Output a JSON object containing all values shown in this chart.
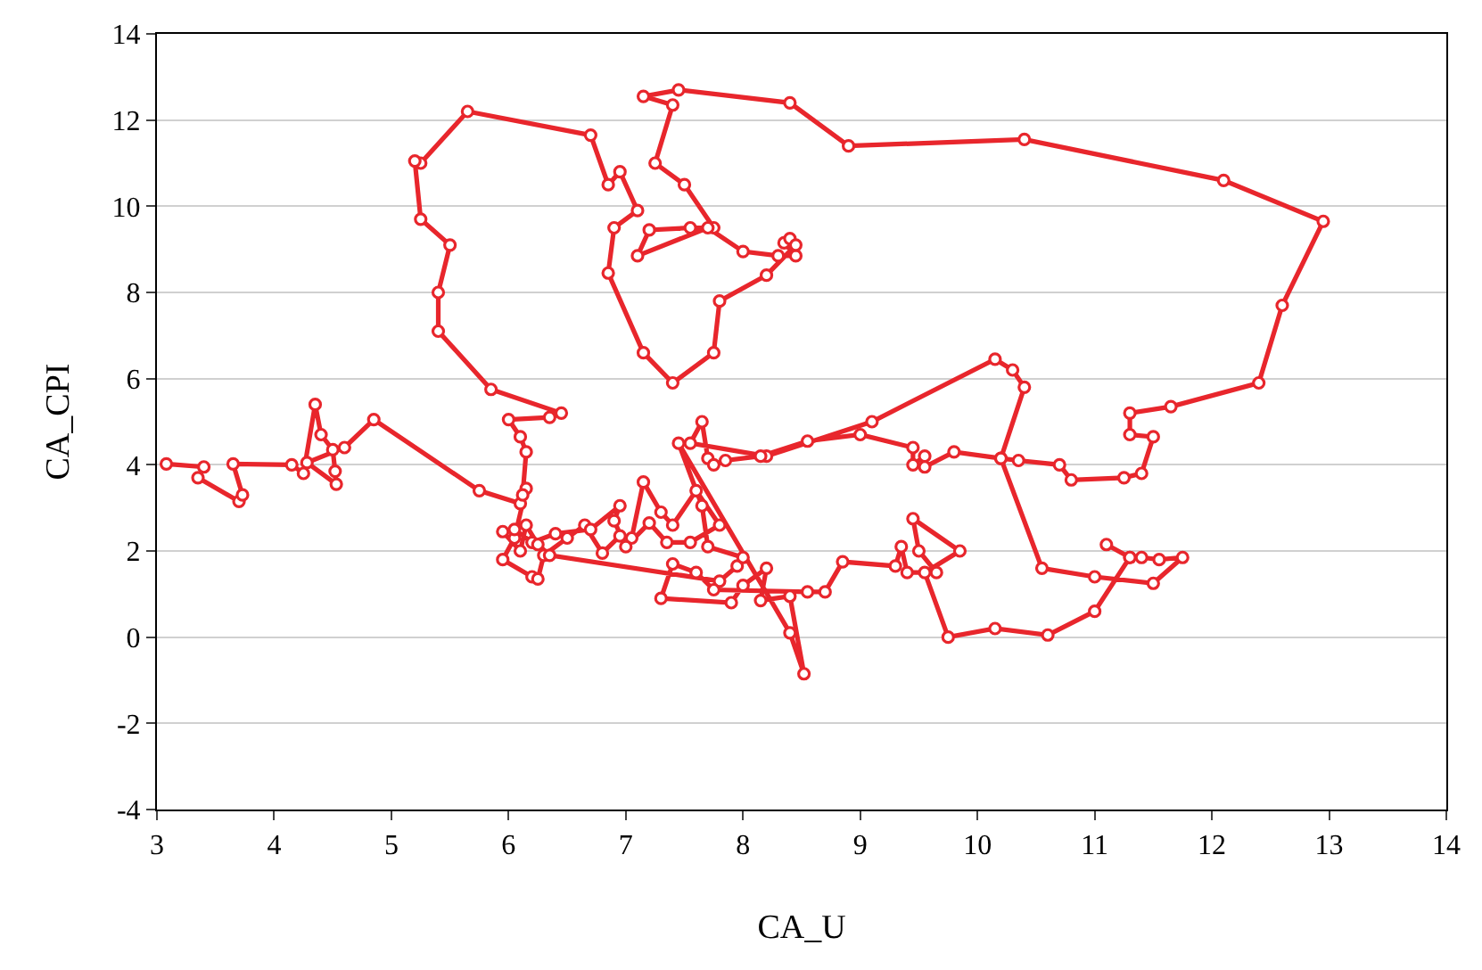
{
  "chart_data": {
    "type": "line",
    "xlabel": "CA_U",
    "ylabel": "CA_CPI",
    "xlim": [
      3,
      14
    ],
    "ylim": [
      -4,
      14
    ],
    "xticks": [
      3,
      4,
      5,
      6,
      7,
      8,
      9,
      10,
      11,
      12,
      13,
      14
    ],
    "yticks": [
      -4,
      -2,
      0,
      2,
      4,
      6,
      8,
      10,
      12,
      14
    ],
    "grid": "y",
    "marker": "circle",
    "line_style": "solid",
    "series": [
      {
        "color": "#e8262c",
        "x": [
          3.08,
          3.4,
          3.35,
          3.7,
          3.73,
          3.65,
          4.15,
          4.25,
          4.35,
          4.4,
          4.5,
          4.52,
          4.53,
          4.28,
          4.6,
          4.85,
          5.75,
          6.1,
          6.15,
          6.05,
          5.95,
          6.2,
          6.25,
          6.3,
          6.5,
          6.65,
          6.8,
          6.95,
          7.05,
          7.15,
          7.3,
          7.4,
          7.6,
          7.8,
          7.55,
          7.35,
          7.2,
          7.0,
          6.9,
          6.95,
          6.7,
          6.4,
          6.2,
          6.05,
          5.95,
          6.1,
          6.15,
          6.25,
          6.35,
          7.8,
          7.95,
          8.0,
          7.7,
          7.65,
          7.45,
          8.4,
          8.52,
          8.4,
          8.15,
          8.2,
          8.0,
          7.9,
          7.3,
          7.4,
          7.6,
          7.75,
          8.55,
          8.7,
          8.85,
          9.3,
          9.35,
          9.4,
          9.65,
          9.5,
          9.45,
          9.85,
          9.55,
          9.75,
          10.15,
          10.6,
          11.0,
          11.3,
          11.1,
          11.3,
          11.4,
          11.55,
          11.75,
          11.5,
          11.0,
          10.55,
          10.2,
          10.4,
          10.3,
          10.15,
          9.1,
          8.2,
          7.55,
          7.65,
          7.7,
          7.75,
          7.85,
          8.15,
          8.55,
          9.0,
          9.45,
          9.45,
          9.55,
          9.55,
          9.8,
          10.2,
          10.35,
          10.7,
          10.8,
          11.25,
          11.4,
          11.5,
          11.3,
          11.3,
          11.65,
          12.4,
          12.6,
          12.95,
          12.1,
          10.4,
          8.9,
          8.4,
          7.45,
          7.15,
          7.4,
          7.25,
          7.5,
          7.75,
          7.55,
          7.2,
          7.1,
          7.7,
          8.0,
          8.3,
          8.45,
          8.35,
          8.4,
          8.45,
          8.2,
          7.8,
          7.75,
          7.4,
          7.15,
          6.85,
          6.9,
          7.1,
          6.95,
          6.85,
          6.7,
          5.65,
          5.25,
          5.2,
          5.25,
          5.5,
          5.4,
          5.4,
          5.85,
          6.45,
          6.35,
          6.0,
          6.1,
          6.15,
          6.12
        ],
        "values": [
          4.02,
          3.95,
          3.7,
          3.15,
          3.3,
          4.02,
          4.0,
          3.8,
          5.4,
          4.7,
          4.35,
          3.85,
          3.55,
          4.05,
          4.4,
          5.05,
          3.4,
          3.1,
          3.45,
          2.3,
          1.8,
          1.4,
          1.35,
          1.9,
          2.3,
          2.6,
          1.95,
          2.35,
          2.3,
          3.6,
          2.9,
          2.6,
          3.4,
          2.6,
          2.2,
          2.2,
          2.65,
          2.1,
          2.7,
          3.05,
          2.5,
          2.4,
          2.2,
          2.5,
          2.45,
          2.0,
          2.6,
          2.15,
          1.9,
          1.3,
          1.65,
          1.85,
          2.1,
          3.05,
          4.5,
          0.1,
          -0.85,
          0.95,
          0.85,
          1.6,
          1.2,
          0.8,
          0.9,
          1.7,
          1.5,
          1.1,
          1.05,
          1.05,
          1.75,
          1.65,
          2.1,
          1.5,
          1.5,
          2.0,
          2.75,
          2.0,
          1.5,
          0.0,
          0.2,
          0.05,
          0.6,
          1.85,
          2.15,
          1.85,
          1.85,
          1.8,
          1.85,
          1.25,
          1.4,
          1.6,
          4.15,
          5.8,
          6.2,
          6.45,
          5.0,
          4.2,
          4.5,
          5.0,
          4.15,
          4.0,
          4.1,
          4.2,
          4.55,
          4.7,
          4.4,
          4.0,
          4.2,
          3.95,
          4.3,
          4.15,
          4.1,
          4.0,
          3.65,
          3.7,
          3.8,
          4.65,
          4.7,
          5.2,
          5.35,
          5.9,
          7.7,
          9.65,
          10.6,
          11.55,
          11.4,
          12.4,
          12.7,
          12.55,
          12.35,
          11.0,
          10.5,
          9.5,
          9.5,
          9.45,
          8.85,
          9.5,
          8.95,
          8.85,
          8.85,
          9.15,
          9.25,
          9.1,
          8.4,
          7.8,
          6.6,
          5.9,
          6.6,
          8.45,
          9.5,
          9.9,
          10.8,
          10.5,
          11.65,
          12.2,
          11.0,
          11.05,
          9.7,
          9.1,
          8.0,
          7.1,
          5.75,
          5.2,
          5.1,
          5.05,
          4.65,
          4.3,
          3.3
        ]
      }
    ]
  }
}
